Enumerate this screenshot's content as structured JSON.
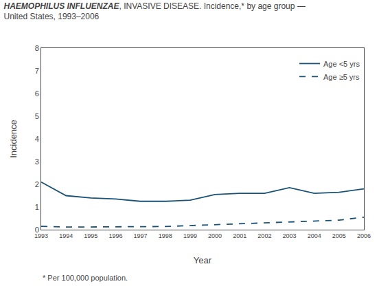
{
  "chart_data": {
    "type": "line",
    "title": "HAEMOPHILUS INFLUENZAE, INVASIVE DISEASE. Incidence,* by age group —",
    "subtitle": "United States, 1993–2006",
    "annotations": [
      "* Per 100,000 population."
    ],
    "x_label": "Year",
    "y_label": "Incidence",
    "x": [
      1993,
      1994,
      1995,
      1996,
      1997,
      1998,
      1999,
      2000,
      2001,
      2002,
      2003,
      2004,
      2005,
      2006
    ],
    "series": [
      {
        "name": "Age <5 yrs",
        "color": "#1a5276",
        "line_style": "solid",
        "values": [
          2.1,
          1.5,
          1.4,
          1.35,
          1.25,
          1.25,
          1.3,
          1.55,
          1.6,
          1.6,
          1.85,
          1.6,
          1.65,
          1.8
        ]
      },
      {
        "name": "Age ≥5 yrs",
        "color": "#1a5276",
        "line_style": "dashed",
        "values": [
          0.15,
          0.12,
          0.12,
          0.12,
          0.12,
          0.14,
          0.18,
          0.22,
          0.25,
          0.28,
          0.32,
          0.38,
          0.42,
          0.55
        ]
      }
    ],
    "xlim": [
      1993,
      2006
    ],
    "xticks": [
      1993,
      1994,
      1995,
      1996,
      1997,
      1998,
      1999,
      2000,
      2001,
      2002,
      2003,
      2004,
      2005,
      2006
    ],
    "ylim": [
      0,
      8
    ],
    "yticks": [
      0,
      1,
      2,
      3,
      4,
      5,
      6,
      7,
      8
    ],
    "grid": false,
    "legend": "upper right"
  }
}
